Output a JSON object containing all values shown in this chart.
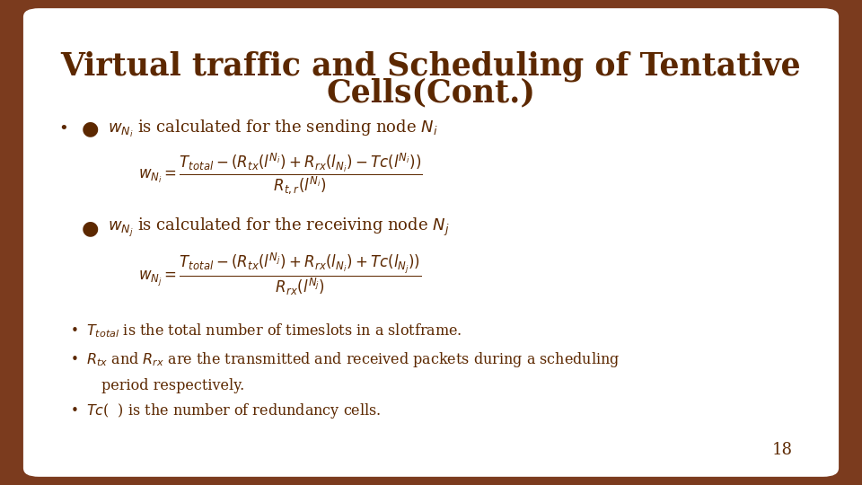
{
  "background_color": "#7B3B1E",
  "slide_bg": "#FFFFFF",
  "title_line1": "Virtual traffic and Scheduling of Tentative",
  "title_line2": "Cells(Cont.)",
  "title_color": "#5C2800",
  "body_color": "#5C2800",
  "page_number": "18"
}
